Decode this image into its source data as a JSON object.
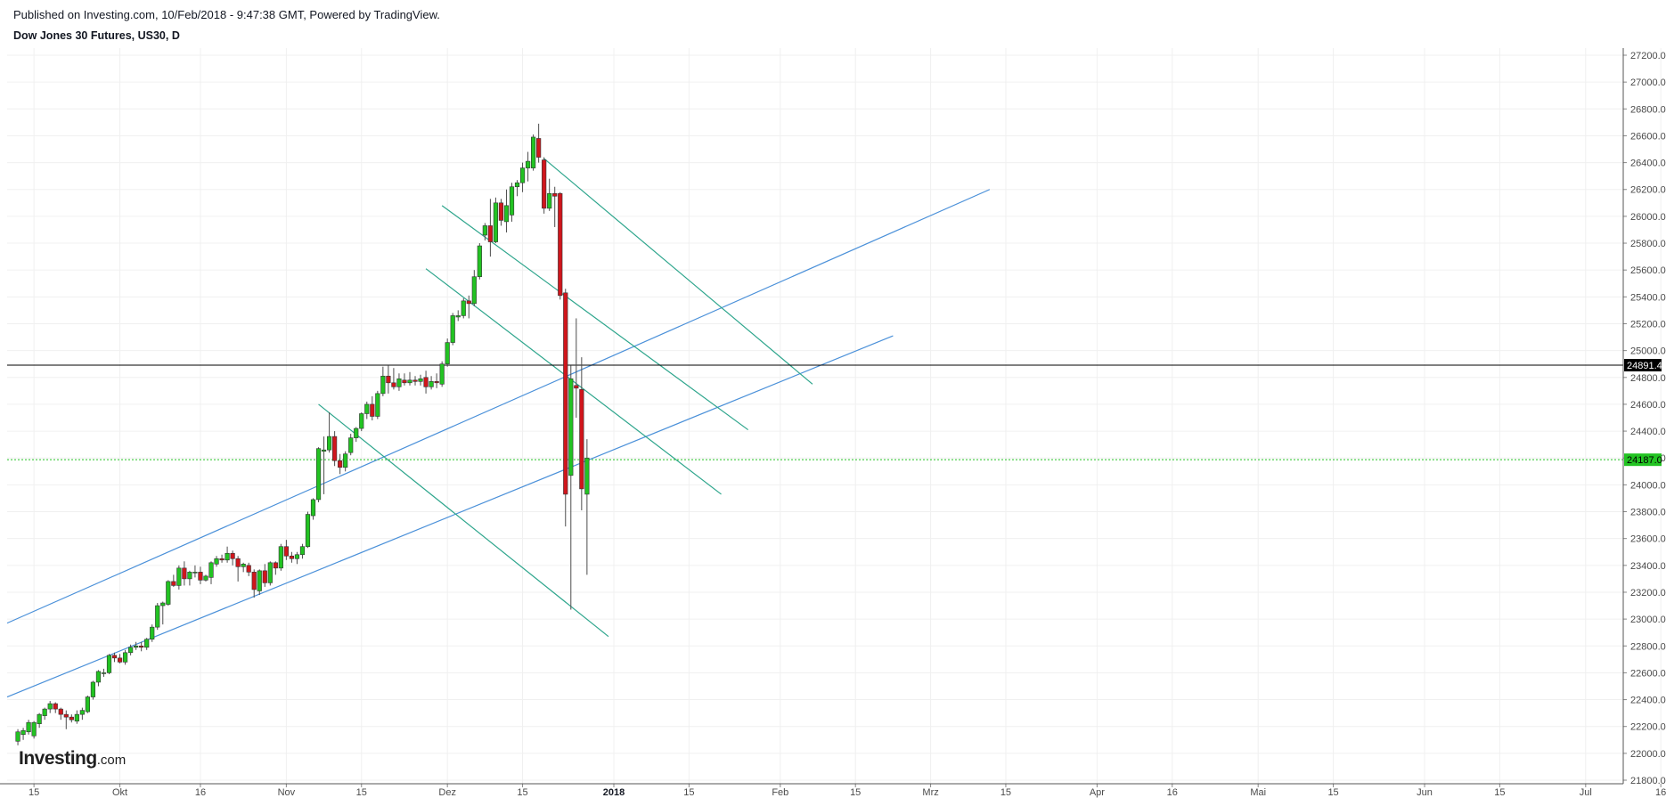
{
  "header": {
    "published": "Published on Investing.com, 10/Feb/2018 - 9:47:38 GMT, Powered by TradingView.",
    "symbol": "Dow Jones 30 Futures, US30, D"
  },
  "logo": {
    "brand": "Investing",
    "suffix": ".com"
  },
  "colors": {
    "up": "#22c322",
    "down": "#d0161c",
    "wick": "#4d4d4d",
    "trend_blue": "#4a90d9",
    "trend_green": "#2da58c",
    "grid": "#f0f0f0",
    "current_price_line": "#22c322",
    "ref_price_line": "#000000"
  },
  "chart_data": {
    "type": "candlestick",
    "x_axis": {
      "range_days": [
        -5,
        296
      ],
      "ticks": [
        {
          "day": 0,
          "label": "15"
        },
        {
          "day": 16,
          "label": "Okt"
        },
        {
          "day": 31,
          "label": "16"
        },
        {
          "day": 47,
          "label": "Nov"
        },
        {
          "day": 61,
          "label": "15"
        },
        {
          "day": 77,
          "label": "Dez"
        },
        {
          "day": 91,
          "label": "15"
        },
        {
          "day": 108,
          "label": "2018",
          "bold": true
        },
        {
          "day": 122,
          "label": "15"
        },
        {
          "day": 139,
          "label": "Feb"
        },
        {
          "day": 153,
          "label": "15"
        },
        {
          "day": 167,
          "label": "Mrz"
        },
        {
          "day": 181,
          "label": "15"
        },
        {
          "day": 198,
          "label": "Apr"
        },
        {
          "day": 212,
          "label": "16"
        },
        {
          "day": 228,
          "label": "Mai"
        },
        {
          "day": 242,
          "label": "15"
        },
        {
          "day": 259,
          "label": "Jun"
        },
        {
          "day": 273,
          "label": "15"
        },
        {
          "day": 289,
          "label": "Jul"
        },
        {
          "day": 303,
          "label": "16"
        }
      ]
    },
    "y_axis": {
      "min": 21800,
      "max": 27200,
      "step": 200,
      "labels": [
        "27200.0",
        "27000.0",
        "26800.0",
        "26600.0",
        "26400.0",
        "26200.0",
        "26000.0",
        "25800.0",
        "25600.0",
        "25400.0",
        "25200.0",
        "25000.0",
        "24800.0",
        "24600.0",
        "24400.0",
        "24200.0",
        "24000.0",
        "23800.0",
        "23600.0",
        "23400.0",
        "23200.0",
        "23000.0",
        "22800.0",
        "22600.0",
        "22400.0",
        "22200.0",
        "22000.0",
        "21800.0"
      ]
    },
    "price_labels": [
      {
        "value": 24891.4,
        "label": "24891.4",
        "type": "reference"
      },
      {
        "value": 24187.0,
        "label": "24187.0",
        "type": "current"
      }
    ],
    "candles": [
      {
        "d": -3,
        "o": 22090,
        "h": 22180,
        "l": 22060,
        "c": 22160
      },
      {
        "d": -2,
        "o": 22140,
        "h": 22190,
        "l": 22100,
        "c": 22170
      },
      {
        "d": -1,
        "o": 22160,
        "h": 22250,
        "l": 22140,
        "c": 22230
      },
      {
        "d": 0,
        "o": 22130,
        "h": 22240,
        "l": 22110,
        "c": 22230
      },
      {
        "d": 1,
        "o": 22220,
        "h": 22300,
        "l": 22190,
        "c": 22290
      },
      {
        "d": 2,
        "o": 22280,
        "h": 22340,
        "l": 22250,
        "c": 22330
      },
      {
        "d": 3,
        "o": 22330,
        "h": 22390,
        "l": 22300,
        "c": 22370
      },
      {
        "d": 4,
        "o": 22370,
        "h": 22380,
        "l": 22300,
        "c": 22330
      },
      {
        "d": 5,
        "o": 22330,
        "h": 22340,
        "l": 22250,
        "c": 22290
      },
      {
        "d": 6,
        "o": 22290,
        "h": 22320,
        "l": 22180,
        "c": 22270
      },
      {
        "d": 7,
        "o": 22270,
        "h": 22290,
        "l": 22230,
        "c": 22250
      },
      {
        "d": 8,
        "o": 22240,
        "h": 22320,
        "l": 22220,
        "c": 22290
      },
      {
        "d": 9,
        "o": 22290,
        "h": 22340,
        "l": 22250,
        "c": 22320
      },
      {
        "d": 10,
        "o": 22310,
        "h": 22430,
        "l": 22300,
        "c": 22420
      },
      {
        "d": 11,
        "o": 22420,
        "h": 22540,
        "l": 22400,
        "c": 22530
      },
      {
        "d": 12,
        "o": 22530,
        "h": 22620,
        "l": 22500,
        "c": 22610
      },
      {
        "d": 13,
        "o": 22600,
        "h": 22630,
        "l": 22570,
        "c": 22600
      },
      {
        "d": 14,
        "o": 22600,
        "h": 22740,
        "l": 22590,
        "c": 22730
      },
      {
        "d": 15,
        "o": 22730,
        "h": 22750,
        "l": 22680,
        "c": 22710
      },
      {
        "d": 16,
        "o": 22710,
        "h": 22740,
        "l": 22670,
        "c": 22680
      },
      {
        "d": 17,
        "o": 22680,
        "h": 22770,
        "l": 22660,
        "c": 22750
      },
      {
        "d": 18,
        "o": 22750,
        "h": 22810,
        "l": 22730,
        "c": 22790
      },
      {
        "d": 19,
        "o": 22790,
        "h": 22830,
        "l": 22770,
        "c": 22800
      },
      {
        "d": 20,
        "o": 22800,
        "h": 22830,
        "l": 22760,
        "c": 22790
      },
      {
        "d": 21,
        "o": 22790,
        "h": 22860,
        "l": 22770,
        "c": 22850
      },
      {
        "d": 22,
        "o": 22850,
        "h": 22960,
        "l": 22830,
        "c": 22940
      },
      {
        "d": 23,
        "o": 22940,
        "h": 23120,
        "l": 22920,
        "c": 23100
      },
      {
        "d": 24,
        "o": 23100,
        "h": 23130,
        "l": 22960,
        "c": 23120
      },
      {
        "d": 25,
        "o": 23110,
        "h": 23290,
        "l": 23100,
        "c": 23280
      },
      {
        "d": 26,
        "o": 23280,
        "h": 23330,
        "l": 23240,
        "c": 23250
      },
      {
        "d": 27,
        "o": 23250,
        "h": 23400,
        "l": 23220,
        "c": 23380
      },
      {
        "d": 28,
        "o": 23380,
        "h": 23430,
        "l": 23250,
        "c": 23300
      },
      {
        "d": 29,
        "o": 23300,
        "h": 23360,
        "l": 23250,
        "c": 23350
      },
      {
        "d": 30,
        "o": 23350,
        "h": 23400,
        "l": 23310,
        "c": 23350
      },
      {
        "d": 31,
        "o": 23350,
        "h": 23390,
        "l": 23260,
        "c": 23290
      },
      {
        "d": 32,
        "o": 23290,
        "h": 23330,
        "l": 23280,
        "c": 23320
      },
      {
        "d": 33,
        "o": 23310,
        "h": 23430,
        "l": 23260,
        "c": 23420
      },
      {
        "d": 34,
        "o": 23410,
        "h": 23470,
        "l": 23390,
        "c": 23450
      },
      {
        "d": 35,
        "o": 23450,
        "h": 23480,
        "l": 23420,
        "c": 23440
      },
      {
        "d": 36,
        "o": 23440,
        "h": 23540,
        "l": 23420,
        "c": 23490
      },
      {
        "d": 37,
        "o": 23490,
        "h": 23510,
        "l": 23400,
        "c": 23450
      },
      {
        "d": 38,
        "o": 23450,
        "h": 23470,
        "l": 23280,
        "c": 23390
      },
      {
        "d": 39,
        "o": 23390,
        "h": 23420,
        "l": 23350,
        "c": 23410
      },
      {
        "d": 40,
        "o": 23400,
        "h": 23420,
        "l": 23320,
        "c": 23350
      },
      {
        "d": 41,
        "o": 23350,
        "h": 23370,
        "l": 23160,
        "c": 23220
      },
      {
        "d": 42,
        "o": 23210,
        "h": 23370,
        "l": 23180,
        "c": 23360
      },
      {
        "d": 43,
        "o": 23360,
        "h": 23410,
        "l": 23240,
        "c": 23270
      },
      {
        "d": 44,
        "o": 23270,
        "h": 23430,
        "l": 23250,
        "c": 23420
      },
      {
        "d": 45,
        "o": 23420,
        "h": 23430,
        "l": 23330,
        "c": 23380
      },
      {
        "d": 46,
        "o": 23380,
        "h": 23560,
        "l": 23360,
        "c": 23540
      },
      {
        "d": 47,
        "o": 23540,
        "h": 23590,
        "l": 23440,
        "c": 23470
      },
      {
        "d": 48,
        "o": 23470,
        "h": 23500,
        "l": 23420,
        "c": 23450
      },
      {
        "d": 49,
        "o": 23450,
        "h": 23500,
        "l": 23410,
        "c": 23480
      },
      {
        "d": 50,
        "o": 23480,
        "h": 23560,
        "l": 23450,
        "c": 23540
      },
      {
        "d": 51,
        "o": 23540,
        "h": 23800,
        "l": 23530,
        "c": 23780
      },
      {
        "d": 52,
        "o": 23770,
        "h": 23900,
        "l": 23740,
        "c": 23890
      },
      {
        "d": 53,
        "o": 23890,
        "h": 24280,
        "l": 23870,
        "c": 24270
      },
      {
        "d": 54,
        "o": 24250,
        "h": 24360,
        "l": 23930,
        "c": 24260
      },
      {
        "d": 55,
        "o": 24260,
        "h": 24540,
        "l": 24240,
        "c": 24360
      },
      {
        "d": 56,
        "o": 24360,
        "h": 24400,
        "l": 24140,
        "c": 24180
      },
      {
        "d": 57,
        "o": 24180,
        "h": 24230,
        "l": 24080,
        "c": 24130
      },
      {
        "d": 58,
        "o": 24130,
        "h": 24250,
        "l": 24100,
        "c": 24230
      },
      {
        "d": 59,
        "o": 24240,
        "h": 24380,
        "l": 24220,
        "c": 24350
      },
      {
        "d": 60,
        "o": 24350,
        "h": 24430,
        "l": 24320,
        "c": 24420
      },
      {
        "d": 61,
        "o": 24420,
        "h": 24540,
        "l": 24400,
        "c": 24530
      },
      {
        "d": 62,
        "o": 24530,
        "h": 24620,
        "l": 24490,
        "c": 24600
      },
      {
        "d": 63,
        "o": 24600,
        "h": 24660,
        "l": 24480,
        "c": 24510
      },
      {
        "d": 64,
        "o": 24510,
        "h": 24700,
        "l": 24490,
        "c": 24680
      },
      {
        "d": 65,
        "o": 24680,
        "h": 24880,
        "l": 24660,
        "c": 24810
      },
      {
        "d": 66,
        "o": 24810,
        "h": 24890,
        "l": 24680,
        "c": 24760
      },
      {
        "d": 67,
        "o": 24760,
        "h": 24870,
        "l": 24710,
        "c": 24730
      },
      {
        "d": 68,
        "o": 24730,
        "h": 24830,
        "l": 24700,
        "c": 24790
      },
      {
        "d": 69,
        "o": 24780,
        "h": 24830,
        "l": 24740,
        "c": 24760
      },
      {
        "d": 70,
        "o": 24760,
        "h": 24840,
        "l": 24740,
        "c": 24780
      },
      {
        "d": 71,
        "o": 24780,
        "h": 24810,
        "l": 24740,
        "c": 24770
      },
      {
        "d": 72,
        "o": 24770,
        "h": 24820,
        "l": 24740,
        "c": 24790
      },
      {
        "d": 73,
        "o": 24800,
        "h": 24850,
        "l": 24680,
        "c": 24730
      },
      {
        "d": 74,
        "o": 24730,
        "h": 24810,
        "l": 24710,
        "c": 24770
      },
      {
        "d": 75,
        "o": 24770,
        "h": 24830,
        "l": 24720,
        "c": 24760
      },
      {
        "d": 76,
        "o": 24750,
        "h": 24920,
        "l": 24730,
        "c": 24900
      },
      {
        "d": 77,
        "o": 24900,
        "h": 25090,
        "l": 24880,
        "c": 25060
      },
      {
        "d": 78,
        "o": 25060,
        "h": 25280,
        "l": 25040,
        "c": 25260
      },
      {
        "d": 79,
        "o": 25250,
        "h": 25300,
        "l": 25220,
        "c": 25260
      },
      {
        "d": 80,
        "o": 25260,
        "h": 25390,
        "l": 25240,
        "c": 25370
      },
      {
        "d": 81,
        "o": 25370,
        "h": 25410,
        "l": 25240,
        "c": 25350
      },
      {
        "d": 82,
        "o": 25350,
        "h": 25600,
        "l": 25330,
        "c": 25550
      },
      {
        "d": 83,
        "o": 25550,
        "h": 25800,
        "l": 25530,
        "c": 25780
      },
      {
        "d": 84,
        "o": 25860,
        "h": 25950,
        "l": 25820,
        "c": 25930
      },
      {
        "d": 85,
        "o": 25930,
        "h": 26130,
        "l": 25700,
        "c": 25810
      },
      {
        "d": 86,
        "o": 25810,
        "h": 26140,
        "l": 25800,
        "c": 26100
      },
      {
        "d": 87,
        "o": 26100,
        "h": 26130,
        "l": 25930,
        "c": 25970
      },
      {
        "d": 88,
        "o": 25960,
        "h": 26200,
        "l": 25880,
        "c": 26080
      },
      {
        "d": 89,
        "o": 26010,
        "h": 26250,
        "l": 25960,
        "c": 26220
      },
      {
        "d": 90,
        "o": 26220,
        "h": 26270,
        "l": 26150,
        "c": 26250
      },
      {
        "d": 91,
        "o": 26250,
        "h": 26400,
        "l": 26180,
        "c": 26360
      },
      {
        "d": 92,
        "o": 26360,
        "h": 26480,
        "l": 26260,
        "c": 26410
      },
      {
        "d": 93,
        "o": 26360,
        "h": 26610,
        "l": 26340,
        "c": 26590
      },
      {
        "d": 94,
        "o": 26580,
        "h": 26690,
        "l": 26400,
        "c": 26440
      },
      {
        "d": 95,
        "o": 26420,
        "h": 26440,
        "l": 26020,
        "c": 26060
      },
      {
        "d": 96,
        "o": 26060,
        "h": 26280,
        "l": 26040,
        "c": 26170
      },
      {
        "d": 97,
        "o": 26170,
        "h": 26220,
        "l": 25920,
        "c": 26150
      },
      {
        "d": 98,
        "o": 26170,
        "h": 26180,
        "l": 25380,
        "c": 25410
      },
      {
        "d": 99,
        "o": 25430,
        "h": 25460,
        "l": 23690,
        "c": 23930
      },
      {
        "d": 100,
        "o": 24070,
        "h": 24890,
        "l": 23070,
        "c": 24790
      },
      {
        "d": 101,
        "o": 24740,
        "h": 25240,
        "l": 24500,
        "c": 24720
      },
      {
        "d": 102,
        "o": 24710,
        "h": 24950,
        "l": 23810,
        "c": 23970
      },
      {
        "d": 103,
        "o": 23930,
        "h": 24340,
        "l": 23330,
        "c": 24200
      }
    ],
    "trendlines": [
      {
        "color": "trend_blue",
        "p1": [
          -5,
          22970
        ],
        "p2": [
          178,
          26200
        ]
      },
      {
        "color": "trend_blue",
        "p1": [
          -5,
          22420
        ],
        "p2": [
          160,
          25110
        ]
      },
      {
        "color": "trend_green",
        "p1": [
          95,
          26430
        ],
        "p2": [
          145,
          24750
        ]
      },
      {
        "color": "trend_green",
        "p1": [
          76,
          26080
        ],
        "p2": [
          133,
          24410
        ]
      },
      {
        "color": "trend_green",
        "p1": [
          73,
          25610
        ],
        "p2": [
          128,
          23930
        ]
      },
      {
        "color": "trend_green",
        "p1": [
          53,
          24600
        ],
        "p2": [
          107,
          22870
        ]
      }
    ]
  }
}
